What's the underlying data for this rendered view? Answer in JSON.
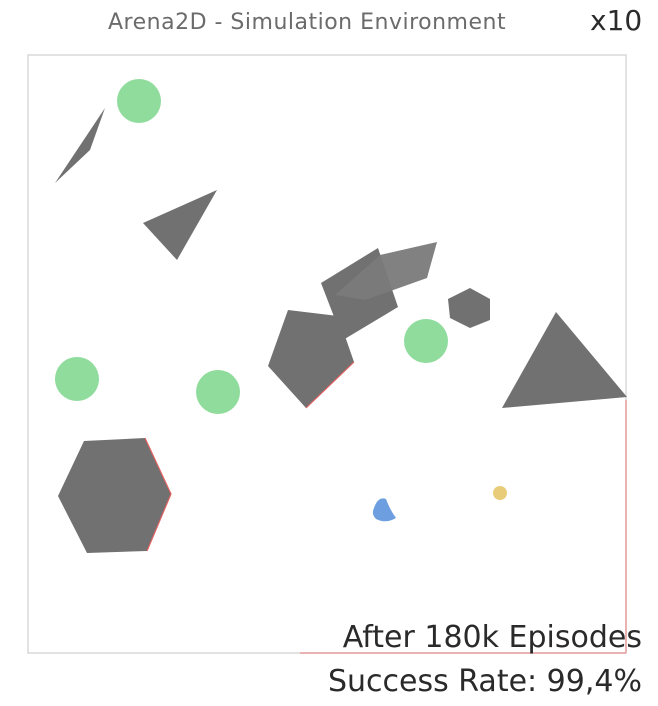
{
  "header": {
    "title": "Arena2D - Simulation Environment",
    "speed": "x10"
  },
  "overlay": {
    "episodes_text": "After 180k Episodes",
    "success_text": "Success Rate: 99,4%"
  },
  "colors": {
    "obstacle": "#717171",
    "goal": "#8fdc9c",
    "robot": "#6d9ee0",
    "target": "#e9cc7a",
    "border": "#d8d8d8",
    "hit_edge": "#e06060"
  },
  "objects": {
    "obstacle_icon": "grey-polygon",
    "goal_icon": "green-circle",
    "robot_icon": "blue-blob",
    "target_icon": "yellow-dot"
  }
}
